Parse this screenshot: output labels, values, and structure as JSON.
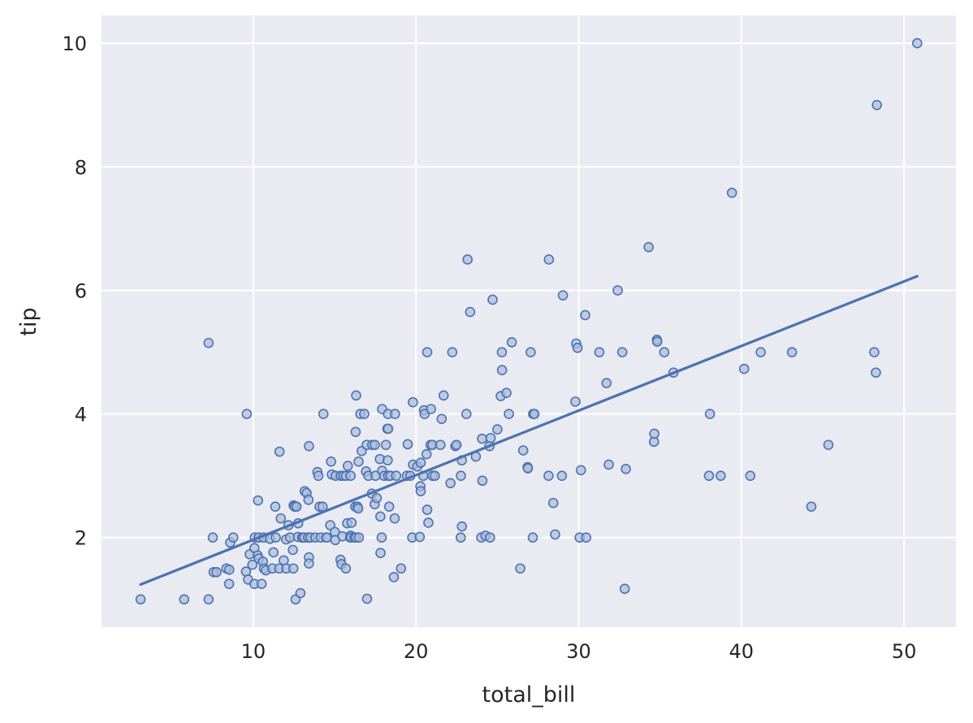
{
  "chart_data": {
    "type": "scatter",
    "title": "",
    "xlabel": "total_bill",
    "ylabel": "tip",
    "xlim": [
      0.67,
      53.19
    ],
    "ylim": [
      0.55,
      10.45
    ],
    "xticks": [
      10,
      20,
      30,
      40,
      50
    ],
    "yticks": [
      2,
      4,
      6,
      8,
      10
    ],
    "grid": true,
    "legend": "none",
    "colors": {
      "background": "#eaeaf2",
      "grid": "#ffffff",
      "marker_edge": "#4c72b0",
      "marker_fill": "#a8bddb",
      "line": "#4c72b0"
    },
    "points": [
      [
        3.07,
        1.0
      ],
      [
        5.75,
        1.0
      ],
      [
        7.25,
        1.0
      ],
      [
        7.25,
        5.15
      ],
      [
        7.51,
        2.0
      ],
      [
        7.56,
        1.44
      ],
      [
        7.74,
        1.44
      ],
      [
        8.35,
        1.5
      ],
      [
        8.51,
        1.25
      ],
      [
        8.52,
        1.48
      ],
      [
        8.58,
        1.92
      ],
      [
        8.77,
        2.0
      ],
      [
        9.55,
        1.45
      ],
      [
        9.6,
        4.0
      ],
      [
        9.68,
        1.32
      ],
      [
        9.78,
        1.73
      ],
      [
        9.94,
        1.56
      ],
      [
        10.07,
        1.83
      ],
      [
        10.07,
        1.25
      ],
      [
        10.09,
        2.0
      ],
      [
        10.27,
        1.71
      ],
      [
        10.29,
        2.6
      ],
      [
        10.33,
        2.0
      ],
      [
        10.34,
        1.66
      ],
      [
        10.34,
        2.0
      ],
      [
        10.51,
        1.25
      ],
      [
        10.59,
        1.61
      ],
      [
        10.63,
        2.0
      ],
      [
        10.65,
        1.5
      ],
      [
        10.77,
        1.47
      ],
      [
        11.02,
        1.98
      ],
      [
        11.17,
        1.5
      ],
      [
        11.24,
        1.76
      ],
      [
        11.35,
        2.5
      ],
      [
        11.38,
        2.0
      ],
      [
        11.59,
        1.5
      ],
      [
        11.61,
        3.39
      ],
      [
        11.69,
        2.31
      ],
      [
        11.87,
        1.63
      ],
      [
        12.02,
        1.97
      ],
      [
        12.03,
        1.5
      ],
      [
        12.16,
        2.2
      ],
      [
        12.26,
        2.0
      ],
      [
        12.43,
        1.8
      ],
      [
        12.46,
        1.5
      ],
      [
        12.48,
        2.52
      ],
      [
        12.54,
        2.5
      ],
      [
        12.6,
        1.0
      ],
      [
        12.66,
        2.5
      ],
      [
        12.74,
        2.01
      ],
      [
        12.76,
        2.23
      ],
      [
        12.9,
        1.1
      ],
      [
        13.0,
        2.0
      ],
      [
        13.03,
        2.0
      ],
      [
        13.13,
        2.0
      ],
      [
        13.16,
        2.75
      ],
      [
        13.28,
        2.72
      ],
      [
        13.37,
        2.0
      ],
      [
        13.39,
        2.61
      ],
      [
        13.42,
        1.68
      ],
      [
        13.42,
        3.48
      ],
      [
        13.42,
        1.58
      ],
      [
        13.51,
        2.0
      ],
      [
        13.81,
        2.0
      ],
      [
        13.94,
        3.06
      ],
      [
        14.0,
        3.0
      ],
      [
        14.07,
        2.5
      ],
      [
        14.15,
        2.0
      ],
      [
        14.26,
        2.5
      ],
      [
        14.31,
        4.0
      ],
      [
        14.48,
        2.0
      ],
      [
        14.52,
        2.0
      ],
      [
        14.73,
        2.2
      ],
      [
        14.78,
        3.23
      ],
      [
        14.83,
        3.02
      ],
      [
        15.01,
        2.09
      ],
      [
        15.04,
        1.96
      ],
      [
        15.06,
        3.0
      ],
      [
        15.36,
        1.64
      ],
      [
        15.38,
        3.0
      ],
      [
        15.42,
        1.57
      ],
      [
        15.48,
        2.02
      ],
      [
        15.53,
        3.0
      ],
      [
        15.69,
        1.5
      ],
      [
        15.69,
        3.0
      ],
      [
        15.77,
        2.23
      ],
      [
        15.81,
        3.16
      ],
      [
        15.95,
        2.0
      ],
      [
        15.98,
        2.03
      ],
      [
        15.98,
        3.0
      ],
      [
        16.0,
        2.0
      ],
      [
        16.04,
        2.24
      ],
      [
        16.21,
        2.0
      ],
      [
        16.27,
        2.5
      ],
      [
        16.29,
        3.71
      ],
      [
        16.31,
        2.0
      ],
      [
        16.32,
        4.3
      ],
      [
        16.4,
        2.5
      ],
      [
        16.45,
        2.47
      ],
      [
        16.47,
        3.23
      ],
      [
        16.49,
        2.0
      ],
      [
        16.58,
        4.0
      ],
      [
        16.66,
        3.4
      ],
      [
        16.82,
        4.0
      ],
      [
        16.93,
        3.07
      ],
      [
        16.97,
        3.5
      ],
      [
        16.99,
        1.01
      ],
      [
        17.07,
        3.0
      ],
      [
        17.29,
        2.71
      ],
      [
        17.31,
        3.5
      ],
      [
        17.46,
        2.54
      ],
      [
        17.47,
        3.5
      ],
      [
        17.51,
        3.0
      ],
      [
        17.59,
        2.64
      ],
      [
        17.78,
        3.27
      ],
      [
        17.81,
        2.34
      ],
      [
        17.82,
        1.75
      ],
      [
        17.89,
        2.0
      ],
      [
        17.92,
        4.08
      ],
      [
        17.92,
        3.08
      ],
      [
        18.04,
        3.0
      ],
      [
        18.15,
        3.5
      ],
      [
        18.24,
        3.76
      ],
      [
        18.26,
        3.25
      ],
      [
        18.28,
        4.0
      ],
      [
        18.29,
        3.76
      ],
      [
        18.29,
        3.0
      ],
      [
        18.35,
        2.5
      ],
      [
        18.43,
        3.0
      ],
      [
        18.64,
        1.36
      ],
      [
        18.69,
        2.31
      ],
      [
        18.71,
        4.0
      ],
      [
        18.78,
        3.0
      ],
      [
        19.08,
        1.5
      ],
      [
        19.44,
        3.0
      ],
      [
        19.49,
        3.51
      ],
      [
        19.65,
        3.0
      ],
      [
        19.77,
        2.0
      ],
      [
        19.81,
        4.19
      ],
      [
        19.82,
        3.18
      ],
      [
        20.08,
        3.15
      ],
      [
        20.23,
        2.01
      ],
      [
        20.27,
        2.83
      ],
      [
        20.29,
        2.75
      ],
      [
        20.29,
        3.21
      ],
      [
        20.45,
        3.0
      ],
      [
        20.49,
        4.06
      ],
      [
        20.53,
        4.0
      ],
      [
        20.65,
        3.35
      ],
      [
        20.69,
        2.45
      ],
      [
        20.69,
        5.0
      ],
      [
        20.76,
        2.24
      ],
      [
        20.9,
        3.5
      ],
      [
        20.92,
        4.08
      ],
      [
        21.01,
        3.5
      ],
      [
        21.01,
        3.0
      ],
      [
        21.16,
        3.0
      ],
      [
        21.5,
        3.5
      ],
      [
        21.58,
        3.92
      ],
      [
        21.7,
        4.3
      ],
      [
        22.12,
        2.88
      ],
      [
        22.23,
        5.0
      ],
      [
        22.42,
        3.48
      ],
      [
        22.49,
        3.5
      ],
      [
        22.75,
        2.0
      ],
      [
        22.76,
        3.0
      ],
      [
        22.82,
        2.18
      ],
      [
        22.82,
        3.25
      ],
      [
        23.1,
        4.0
      ],
      [
        23.17,
        6.5
      ],
      [
        23.33,
        5.65
      ],
      [
        23.68,
        3.31
      ],
      [
        24.01,
        2.0
      ],
      [
        24.06,
        3.6
      ],
      [
        24.08,
        2.92
      ],
      [
        24.27,
        2.03
      ],
      [
        24.52,
        3.48
      ],
      [
        24.55,
        2.0
      ],
      [
        24.59,
        3.61
      ],
      [
        24.71,
        5.85
      ],
      [
        25.0,
        3.75
      ],
      [
        25.21,
        4.29
      ],
      [
        25.28,
        5.0
      ],
      [
        25.29,
        4.71
      ],
      [
        25.56,
        4.34
      ],
      [
        25.71,
        4.0
      ],
      [
        25.89,
        5.16
      ],
      [
        26.41,
        1.5
      ],
      [
        26.59,
        3.41
      ],
      [
        26.86,
        3.14
      ],
      [
        26.88,
        3.12
      ],
      [
        27.05,
        5.0
      ],
      [
        27.18,
        2.0
      ],
      [
        27.2,
        4.0
      ],
      [
        27.28,
        4.0
      ],
      [
        28.15,
        3.0
      ],
      [
        28.17,
        6.5
      ],
      [
        28.44,
        2.56
      ],
      [
        28.55,
        2.05
      ],
      [
        28.97,
        3.0
      ],
      [
        29.03,
        5.92
      ],
      [
        29.8,
        4.2
      ],
      [
        29.85,
        5.14
      ],
      [
        29.93,
        5.07
      ],
      [
        30.06,
        2.0
      ],
      [
        30.14,
        3.09
      ],
      [
        30.4,
        5.6
      ],
      [
        30.46,
        2.0
      ],
      [
        31.27,
        5.0
      ],
      [
        31.71,
        4.5
      ],
      [
        31.85,
        3.18
      ],
      [
        32.4,
        6.0
      ],
      [
        32.68,
        5.0
      ],
      [
        32.83,
        1.17
      ],
      [
        32.9,
        3.11
      ],
      [
        34.3,
        6.7
      ],
      [
        34.63,
        3.55
      ],
      [
        34.65,
        3.68
      ],
      [
        34.81,
        5.2
      ],
      [
        34.83,
        5.17
      ],
      [
        35.26,
        5.0
      ],
      [
        35.83,
        4.67
      ],
      [
        38.01,
        3.0
      ],
      [
        38.07,
        4.0
      ],
      [
        38.73,
        3.0
      ],
      [
        39.42,
        7.58
      ],
      [
        40.17,
        4.73
      ],
      [
        40.55,
        3.0
      ],
      [
        41.19,
        5.0
      ],
      [
        43.11,
        5.0
      ],
      [
        44.3,
        2.5
      ],
      [
        45.35,
        3.5
      ],
      [
        48.17,
        5.0
      ],
      [
        48.27,
        4.67
      ],
      [
        48.33,
        9.0
      ],
      [
        50.81,
        10.0
      ]
    ],
    "regression": {
      "x": [
        3.07,
        50.81
      ],
      "y": [
        1.24,
        6.23
      ]
    }
  }
}
